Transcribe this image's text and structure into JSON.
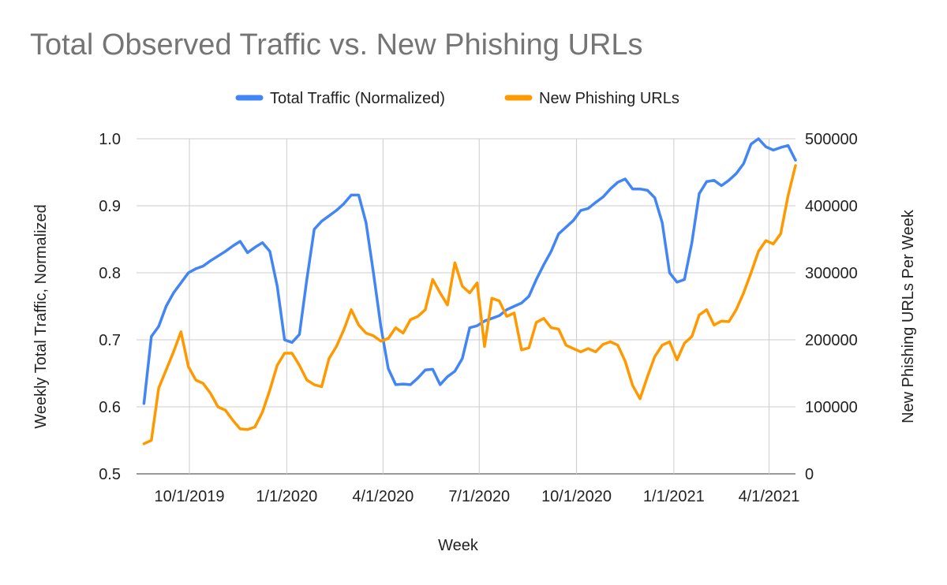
{
  "chart_data": {
    "type": "line",
    "title": "Total Observed Traffic vs. New Phishing URLs",
    "xlabel": "Week",
    "ylabel": "Weekly Total Traffic, Normalized",
    "y2label": "New Phishing URLs Per Week",
    "x_tick_labels": [
      "10/1/2019",
      "1/1/2020",
      "4/1/2020",
      "7/1/2020",
      "10/1/2020",
      "1/1/2021",
      "4/1/2021"
    ],
    "x_tick_dates": [
      "2019-10-01",
      "2020-01-01",
      "2020-04-01",
      "2020-07-01",
      "2020-10-01",
      "2021-01-01",
      "2021-04-01"
    ],
    "x_range": [
      "2019-08-12",
      "2021-04-26"
    ],
    "ylim": [
      0.5,
      1.0
    ],
    "yticks": [
      "0.5",
      "0.6",
      "0.7",
      "0.8",
      "0.9",
      "1.0"
    ],
    "y2lim": [
      0,
      500000
    ],
    "y2ticks": [
      "0",
      "100000",
      "200000",
      "300000",
      "400000",
      "500000"
    ],
    "grid": true,
    "legend_position": "top",
    "x": [
      "2019-08-19",
      "2019-08-26",
      "2019-09-02",
      "2019-09-09",
      "2019-09-16",
      "2019-09-23",
      "2019-09-30",
      "2019-10-07",
      "2019-10-14",
      "2019-10-21",
      "2019-10-28",
      "2019-11-04",
      "2019-11-11",
      "2019-11-18",
      "2019-11-25",
      "2019-12-02",
      "2019-12-09",
      "2019-12-16",
      "2019-12-23",
      "2019-12-30",
      "2020-01-06",
      "2020-01-13",
      "2020-01-20",
      "2020-01-27",
      "2020-02-03",
      "2020-02-10",
      "2020-02-17",
      "2020-02-24",
      "2020-03-02",
      "2020-03-09",
      "2020-03-16",
      "2020-03-23",
      "2020-03-30",
      "2020-04-06",
      "2020-04-13",
      "2020-04-20",
      "2020-04-27",
      "2020-05-04",
      "2020-05-11",
      "2020-05-18",
      "2020-05-25",
      "2020-06-01",
      "2020-06-08",
      "2020-06-15",
      "2020-06-22",
      "2020-06-29",
      "2020-07-06",
      "2020-07-13",
      "2020-07-20",
      "2020-07-27",
      "2020-08-03",
      "2020-08-10",
      "2020-08-17",
      "2020-08-24",
      "2020-08-31",
      "2020-09-07",
      "2020-09-14",
      "2020-09-21",
      "2020-09-28",
      "2020-10-05",
      "2020-10-12",
      "2020-10-19",
      "2020-10-26",
      "2020-11-02",
      "2020-11-09",
      "2020-11-16",
      "2020-11-23",
      "2020-11-30",
      "2020-12-07",
      "2020-12-14",
      "2020-12-21",
      "2020-12-28",
      "2021-01-04",
      "2021-01-11",
      "2021-01-18",
      "2021-01-25",
      "2021-02-01",
      "2021-02-08",
      "2021-02-15",
      "2021-02-22",
      "2021-03-01",
      "2021-03-08",
      "2021-03-15",
      "2021-03-22",
      "2021-03-29",
      "2021-04-05",
      "2021-04-12",
      "2021-04-19",
      "2021-04-26"
    ],
    "series": [
      {
        "name": "Total Traffic (Normalized)",
        "axis": "left",
        "color": "#4285f4",
        "values": [
          0.605,
          0.705,
          0.72,
          0.75,
          0.77,
          0.785,
          0.8,
          0.806,
          0.81,
          0.818,
          0.825,
          0.832,
          0.84,
          0.847,
          0.83,
          0.838,
          0.845,
          0.832,
          0.78,
          0.7,
          0.696,
          0.708,
          0.79,
          0.865,
          0.877,
          0.885,
          0.893,
          0.903,
          0.916,
          0.916,
          0.875,
          0.8,
          0.72,
          0.657,
          0.633,
          0.634,
          0.633,
          0.643,
          0.655,
          0.656,
          0.633,
          0.645,
          0.653,
          0.672,
          0.718,
          0.721,
          0.728,
          0.732,
          0.736,
          0.745,
          0.75,
          0.755,
          0.765,
          0.79,
          0.812,
          0.832,
          0.858,
          0.868,
          0.878,
          0.893,
          0.896,
          0.905,
          0.913,
          0.925,
          0.935,
          0.94,
          0.925,
          0.925,
          0.923,
          0.912,
          0.875,
          0.8,
          0.786,
          0.79,
          0.845,
          0.918,
          0.936,
          0.938,
          0.93,
          0.938,
          0.948,
          0.963,
          0.992,
          1.0,
          0.988,
          0.983,
          0.987,
          0.99,
          0.968
        ]
      },
      {
        "name": "New Phishing URLs",
        "axis": "right",
        "color": "#ff9900",
        "values": [
          45000,
          50000,
          128000,
          155000,
          182000,
          212000,
          160000,
          140000,
          135000,
          120000,
          100000,
          95000,
          80000,
          67000,
          66000,
          70000,
          92000,
          125000,
          162000,
          180000,
          180000,
          162000,
          140000,
          133000,
          130000,
          172000,
          190000,
          215000,
          245000,
          222000,
          210000,
          206000,
          198000,
          202000,
          218000,
          210000,
          230000,
          235000,
          245000,
          290000,
          270000,
          252000,
          315000,
          280000,
          270000,
          285000,
          190000,
          262000,
          258000,
          235000,
          240000,
          185000,
          188000,
          226000,
          232000,
          218000,
          216000,
          192000,
          187000,
          182000,
          187000,
          182000,
          193000,
          197000,
          192000,
          168000,
          132000,
          112000,
          145000,
          175000,
          192000,
          197000,
          170000,
          195000,
          205000,
          237000,
          245000,
          222000,
          228000,
          227000,
          245000,
          270000,
          300000,
          332000,
          348000,
          343000,
          358000,
          415000,
          460000
        ]
      }
    ]
  }
}
